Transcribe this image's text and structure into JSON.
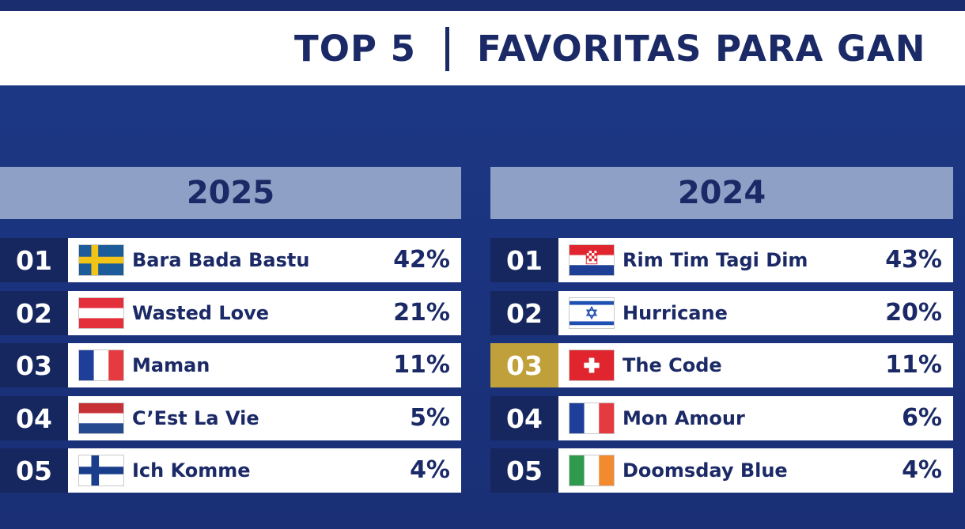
{
  "header": {
    "title_part1": "TOP 5",
    "title_part2": "FAVORITAS PARA GAN"
  },
  "left_panel": {
    "year": "2025",
    "rows": [
      {
        "rank": "01",
        "flag": "sweden-flag-icon",
        "song": "Bara Bada Bastu",
        "percent": "42%"
      },
      {
        "rank": "02",
        "flag": "austria-flag-icon",
        "song": "Wasted Love",
        "percent": "21%"
      },
      {
        "rank": "03",
        "flag": "france-flag-icon",
        "song": "Maman",
        "percent": "11%"
      },
      {
        "rank": "04",
        "flag": "netherlands-flag-icon",
        "song": "C’Est La Vie",
        "percent": "5%"
      },
      {
        "rank": "05",
        "flag": "finland-flag-icon",
        "song": "Ich Komme",
        "percent": "4%"
      }
    ]
  },
  "right_panel": {
    "year": "2024",
    "rows": [
      {
        "rank": "01",
        "flag": "croatia-flag-icon",
        "song": "Rim Tim Tagi Dim",
        "percent": "43%"
      },
      {
        "rank": "02",
        "flag": "israel-flag-icon",
        "song": "Hurricane",
        "percent": "20%"
      },
      {
        "rank": "03",
        "flag": "switzerland-flag-icon",
        "song": "The Code",
        "percent": "11%",
        "highlight": "#bfa03a"
      },
      {
        "rank": "04",
        "flag": "france-flag-icon",
        "song": "Mon Amour",
        "percent": "6%"
      },
      {
        "rank": "05",
        "flag": "ireland-flag-icon",
        "song": "Doomsday Blue",
        "percent": "4%"
      }
    ]
  },
  "colors": {
    "background": "#1d3a86",
    "navy_text": "#1b2a66",
    "rank_box": "#16275f",
    "year_header": "#8ea0c6",
    "highlight_gold": "#bfa03a"
  }
}
